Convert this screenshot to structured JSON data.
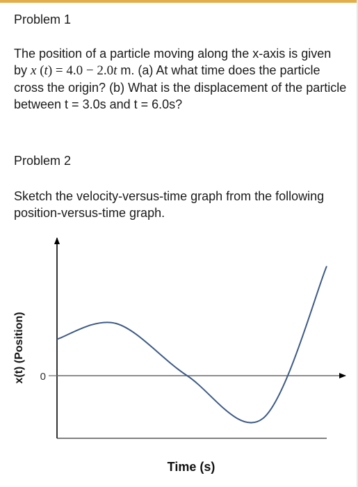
{
  "problem1": {
    "heading": "Problem 1",
    "text_part1": "The position of a particle moving along the x-axis is given by ",
    "equation": {
      "lhs_var": "x",
      "lhs_arg": "t",
      "const": "4.0",
      "coef": "2.0",
      "var": "t",
      "unit": "m."
    },
    "text_part2": " (a) At what time does the particle cross the origin? (b) What is the displacement of the particle between t = 3.0s and t = 6.0s?"
  },
  "problem2": {
    "heading": "Problem 2",
    "text": "Sketch the velocity-versus-time graph from the following position-versus-time graph."
  },
  "chart_data": {
    "type": "line",
    "title": "",
    "xlabel": "Time (s)",
    "ylabel": "x(t) (Position)",
    "y_tick_labels": [
      "0"
    ],
    "x_tick_labels": [],
    "grid": false,
    "legend": "none",
    "colors": {
      "curve": "#3c5a86",
      "axes": "#000000",
      "zero_line": "#666666"
    },
    "series": [
      {
        "x": [
          0,
          1.25,
          2.75,
          4.35,
          5.7
        ],
        "y": [
          0.7,
          1.0,
          0.0,
          -0.82,
          2.1
        ]
      }
    ]
  }
}
